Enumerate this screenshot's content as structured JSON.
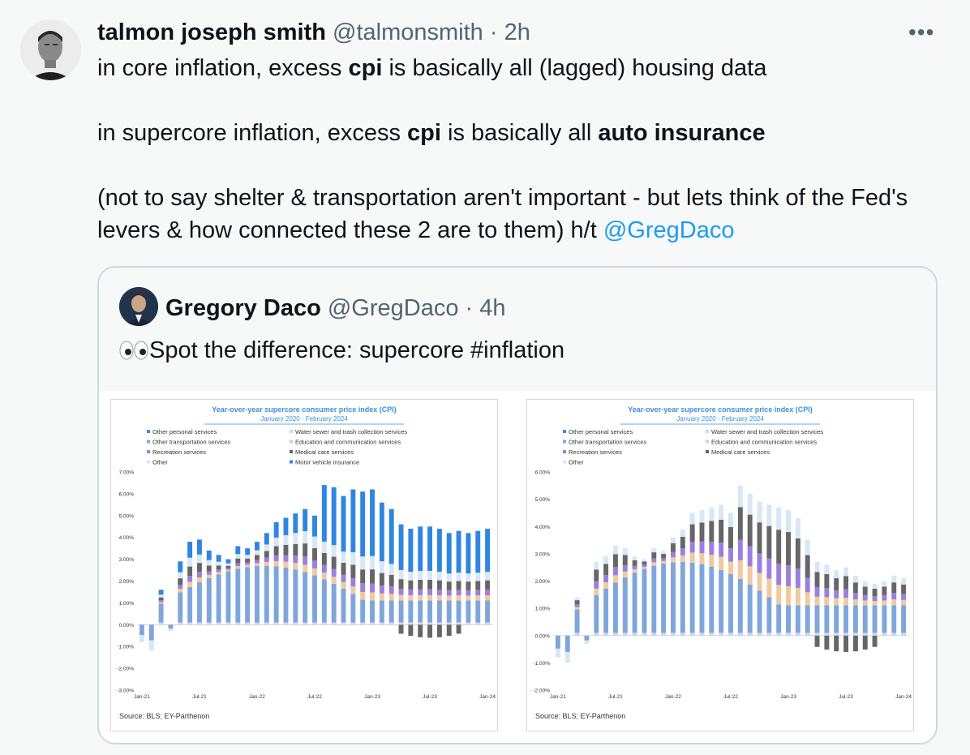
{
  "tweet": {
    "author_name": "talmon joseph smith",
    "author_handle": "@talmonsmith",
    "time": "· 2h",
    "more_label": "•••",
    "para1_a": "in core inflation, excess ",
    "para1_b": "cpi",
    "para1_c": " is basically all (lagged) housing data",
    "para2_a": "in supercore inflation, excess ",
    "para2_b": "cpi",
    "para2_c": " is basically all ",
    "para2_d": "auto insurance",
    "para3_a": "(not to say shelter & transportation aren't important - but lets think of the Fed's levers & how connected these 2 are to them) h/t ",
    "mention": "@GregDaco"
  },
  "quote": {
    "author_name": "Gregory Daco",
    "author_handle": "@GregDaco",
    "time": "· 4h",
    "text": "Spot the difference: supercore #inflation"
  },
  "colors": {
    "personal": "#3a8ee0",
    "water": "#c9ddf0",
    "transport": "#7ea6dc",
    "education": "#f2c99c",
    "recreation": "#9b7fe0",
    "medical": "#666666",
    "other": "#d6e7f8",
    "motor": "#2f86e0",
    "mention": "#1d9bf0"
  },
  "chart_data": [
    {
      "type": "bar",
      "stacked": true,
      "title": "Year-over-year supercore consumer price index (CPI)",
      "subtitle": "January 2020 - February 2024",
      "source": "Source: BLS; EY-Parthenon",
      "ylim": [
        -3,
        7
      ],
      "y_ticks": [
        "7.00%",
        "6.00%",
        "5.00%",
        "4.00%",
        "3.00%",
        "2.00%",
        "1.00%",
        "0.00%",
        "-1.00%",
        "-2.00%",
        "-3.00%"
      ],
      "x_ticks": [
        "Jan-21",
        "Jul-21",
        "Jan-22",
        "Jul-22",
        "Jan-23",
        "Jul-23",
        "Jan-24"
      ],
      "legend": [
        {
          "name": "Other personal services",
          "color": "personal"
        },
        {
          "name": "Water sewer and trash collection services",
          "color": "water"
        },
        {
          "name": "Other transportation services",
          "color": "transport"
        },
        {
          "name": "Education and communication services",
          "color": "education"
        },
        {
          "name": "Recreation services",
          "color": "recreation"
        },
        {
          "name": "Medical care services",
          "color": "medical"
        },
        {
          "name": "Other",
          "color": "other"
        },
        {
          "name": "Motor vehicle insurance",
          "color": "motor"
        }
      ],
      "totals": [
        -0.8,
        -1.2,
        1.6,
        -0.3,
        2.9,
        3.8,
        3.9,
        3.4,
        3.2,
        3.0,
        3.6,
        3.5,
        3.8,
        4.2,
        4.7,
        4.9,
        5.1,
        5.3,
        5.0,
        6.4,
        6.3,
        5.9,
        6.2,
        6.1,
        6.2,
        5.6,
        5.3,
        4.6,
        4.4,
        4.5,
        4.5,
        4.4,
        4.2,
        4.3,
        4.2,
        4.3,
        4.4
      ]
    },
    {
      "type": "bar",
      "stacked": true,
      "title": "Year-over-year supercore consumer price index (CPI)",
      "subtitle": "January 2020 - February 2024",
      "source": "Source: BLS; EY-Parthenon",
      "ylim": [
        -2,
        6
      ],
      "y_ticks": [
        "6.00%",
        "5.00%",
        "4.00%",
        "3.00%",
        "2.00%",
        "1.00%",
        "0.00%",
        "-1.00%",
        "-2.00%"
      ],
      "x_ticks": [
        "Jan-21",
        "Jul-21",
        "Jan-22",
        "Jul-22",
        "Jan-23",
        "Jul-23",
        "Jan-24"
      ],
      "legend": [
        {
          "name": "Other personal services",
          "color": "personal"
        },
        {
          "name": "Water sewer and trash collection services",
          "color": "water"
        },
        {
          "name": "Other transportation services",
          "color": "transport"
        },
        {
          "name": "Education and communication services",
          "color": "education"
        },
        {
          "name": "Recreation services",
          "color": "recreation"
        },
        {
          "name": "Medical care services",
          "color": "medical"
        },
        {
          "name": "Other",
          "color": "other"
        }
      ],
      "totals": [
        -0.8,
        -1.0,
        1.4,
        -0.3,
        2.7,
        2.9,
        3.3,
        3.2,
        2.9,
        2.8,
        3.2,
        3.1,
        3.6,
        3.9,
        4.5,
        4.6,
        4.7,
        4.8,
        4.5,
        5.5,
        5.2,
        4.9,
        4.8,
        4.7,
        4.6,
        4.3,
        3.5,
        2.7,
        2.6,
        2.4,
        2.5,
        2.2,
        2.0,
        1.9,
        2.0,
        2.2,
        2.1
      ]
    }
  ]
}
